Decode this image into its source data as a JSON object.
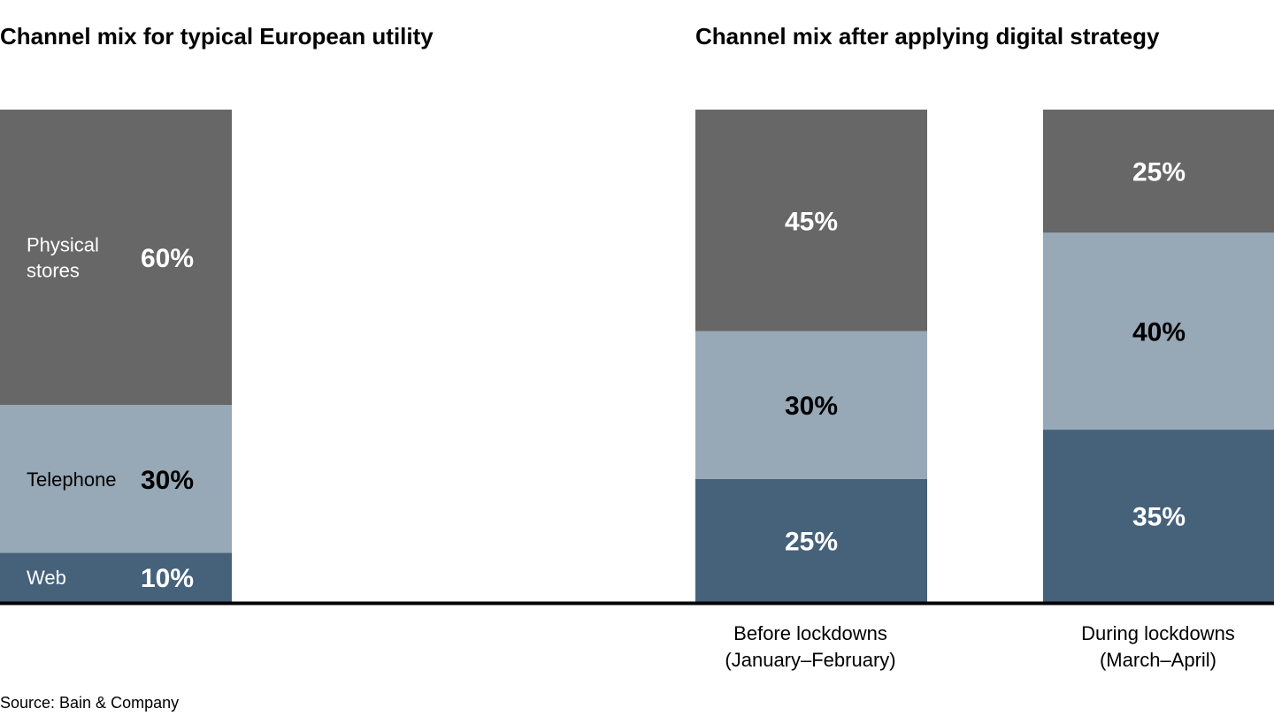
{
  "chart_data": {
    "type": "bar",
    "stacked": true,
    "orientation": "vertical",
    "titles": {
      "left": "Channel mix for typical European utility",
      "right": "Channel mix after applying digital strategy"
    },
    "series_order": [
      "Web",
      "Telephone",
      "Physical stores"
    ],
    "series_labels": {
      "Web": "Web",
      "Telephone": "Telephone",
      "Physical stores": [
        "Physical",
        "stores"
      ]
    },
    "colors": {
      "Web": "#46627b",
      "Telephone": "#97a8b6",
      "Physical stores": "#676767"
    },
    "value_label_colors": {
      "Web": "#ffffff",
      "Telephone": "#000000",
      "Physical stores": "#ffffff"
    },
    "bars": [
      {
        "id": "typical",
        "category": [
          "",
          ""
        ],
        "values": {
          "Web": 10,
          "Telephone": 30,
          "Physical stores": 60
        },
        "labels": {
          "Web": "10%",
          "Telephone": "30%",
          "Physical stores": "60%"
        },
        "show_series_names": true
      },
      {
        "id": "before",
        "category": [
          "Before lockdowns",
          "(January–February)"
        ],
        "values": {
          "Web": 25,
          "Telephone": 30,
          "Physical stores": 45
        },
        "labels": {
          "Web": "25%",
          "Telephone": "30%",
          "Physical stores": "45%"
        },
        "show_series_names": false
      },
      {
        "id": "during",
        "category": [
          "During lockdowns",
          "(March–April)"
        ],
        "values": {
          "Web": 35,
          "Telephone": 40,
          "Physical stores": 25
        },
        "labels": {
          "Web": "35%",
          "Telephone": "40%",
          "Physical stores": "25%"
        },
        "show_series_names": false
      }
    ],
    "ylim": [
      0,
      100
    ],
    "unit": "%",
    "grid": false,
    "legend": "none"
  },
  "source": "Source: Bain & Company"
}
